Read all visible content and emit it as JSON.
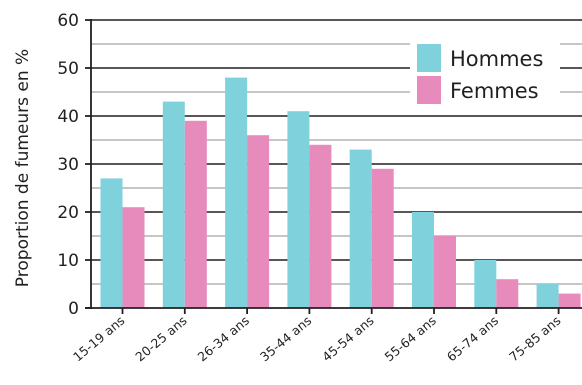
{
  "chart_data": {
    "type": "bar",
    "ylabel": "Proportion de fumeurs en %",
    "xlabel": "",
    "ylim": [
      0,
      60
    ],
    "yticks": [
      0,
      10,
      20,
      30,
      40,
      50,
      60
    ],
    "minor_grid_step": 5,
    "grid": true,
    "legend_position": "top-right",
    "categories": [
      "15-19 ans",
      "20-25 ans",
      "26-34 ans",
      "35-44 ans",
      "45-54 ans",
      "55-64 ans",
      "65-74 ans",
      "75-85 ans"
    ],
    "series": [
      {
        "name": "Hommes",
        "color": "#7fd1dc",
        "values": [
          27,
          43,
          48,
          41,
          33,
          20,
          10,
          5
        ]
      },
      {
        "name": "Femmes",
        "color": "#e68bbb",
        "values": [
          21,
          39,
          36,
          34,
          29,
          15,
          6,
          3
        ]
      }
    ],
    "colors": {
      "axis": "#231f20",
      "major_grid": "#231f20",
      "minor_grid": "#b3b3b3"
    }
  }
}
